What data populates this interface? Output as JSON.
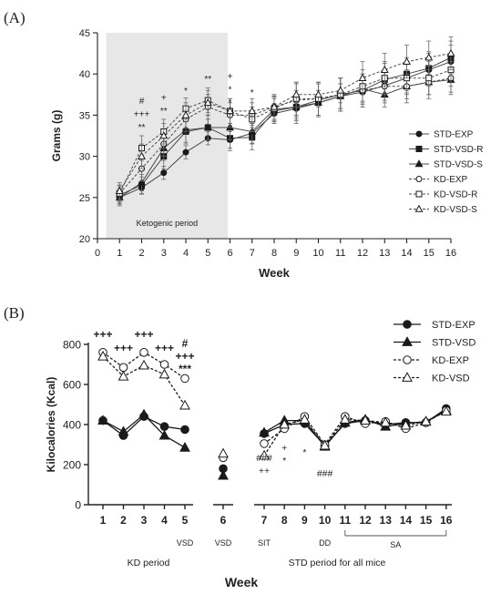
{
  "chart_data": [
    {
      "type": "line",
      "panel": "(A)",
      "xlabel": "Week",
      "ylabel": "Grams (g)",
      "xlim": [
        0,
        16
      ],
      "ylim": [
        20,
        45
      ],
      "x": [
        1,
        2,
        3,
        4,
        5,
        6,
        7,
        8,
        9,
        10,
        11,
        12,
        13,
        14,
        15,
        16
      ],
      "x_ticks": [
        0,
        1,
        2,
        3,
        4,
        5,
        6,
        7,
        8,
        9,
        10,
        11,
        12,
        13,
        14,
        15,
        16
      ],
      "y_ticks": [
        20,
        25,
        30,
        35,
        40,
        45
      ],
      "grid": false,
      "legend_position": "right",
      "shaded_region": {
        "label": "Ketogenic period",
        "x_range": [
          0.4,
          5.9
        ]
      },
      "series": [
        {
          "name": "STD-EXP",
          "marker": "filled-circle",
          "line": "solid",
          "values": [
            25.0,
            26.2,
            28.0,
            30.5,
            32.2,
            32.0,
            32.8,
            35.2,
            35.8,
            36.5,
            37.3,
            37.8,
            38.6,
            39.5,
            40.5,
            41.5
          ],
          "error": [
            0.8,
            0.8,
            0.8,
            0.8,
            0.8,
            1.0,
            1.2,
            1.2,
            1.5,
            1.5,
            1.5,
            1.5,
            1.8,
            1.8,
            2.0,
            2.0
          ]
        },
        {
          "name": "STD-VSD-R",
          "marker": "filled-square",
          "line": "solid",
          "values": [
            25.3,
            26.5,
            30.0,
            33.0,
            33.5,
            32.2,
            32.3,
            35.5,
            36.0,
            36.8,
            37.5,
            38.0,
            39.3,
            40.0,
            40.7,
            42.0
          ],
          "error": [
            1.0,
            1.0,
            1.5,
            1.5,
            1.5,
            1.5,
            1.5,
            1.5,
            2.0,
            2.0,
            2.0,
            2.0,
            2.0,
            2.0,
            2.0,
            2.0
          ]
        },
        {
          "name": "STD-VSD-S",
          "marker": "filled-triangle",
          "line": "solid",
          "values": [
            25.0,
            26.8,
            31.0,
            33.2,
            33.5,
            33.5,
            33.0,
            35.7,
            36.0,
            36.5,
            37.3,
            38.2,
            37.5,
            38.5,
            39.0,
            39.3
          ],
          "error": [
            1.0,
            1.0,
            1.5,
            1.5,
            1.5,
            1.5,
            1.5,
            1.5,
            1.5,
            1.5,
            1.5,
            1.5,
            1.5,
            1.5,
            1.5,
            1.5
          ]
        },
        {
          "name": "KD-EXP",
          "marker": "open-circle",
          "line": "dashed",
          "values": [
            25.5,
            28.5,
            31.5,
            34.5,
            36.0,
            35.0,
            35.0,
            36.0,
            36.8,
            37.0,
            37.5,
            38.0,
            38.5,
            38.5,
            39.0,
            39.5
          ],
          "error": [
            1.0,
            1.5,
            1.5,
            1.5,
            1.5,
            1.5,
            1.5,
            1.5,
            2.0,
            2.0,
            2.0,
            2.0,
            2.0,
            2.0,
            2.0,
            2.0
          ]
        },
        {
          "name": "KD-VSD-R",
          "marker": "open-square",
          "line": "dashed",
          "values": [
            25.5,
            31.0,
            33.0,
            35.8,
            36.8,
            35.5,
            34.5,
            35.8,
            37.0,
            37.0,
            37.5,
            38.5,
            39.5,
            39.5,
            39.5,
            40.5
          ],
          "error": [
            1.0,
            1.5,
            1.5,
            1.3,
            1.5,
            1.5,
            1.5,
            1.5,
            2.0,
            2.0,
            2.0,
            2.0,
            2.0,
            2.0,
            2.0,
            2.0
          ]
        },
        {
          "name": "KD-VSD-S",
          "marker": "open-triangle",
          "line": "dashed",
          "values": [
            25.8,
            30.0,
            32.5,
            35.0,
            36.5,
            35.5,
            35.5,
            36.0,
            37.5,
            37.5,
            38.0,
            39.5,
            40.5,
            41.5,
            42.0,
            42.5
          ],
          "error": [
            1.0,
            1.5,
            1.5,
            1.5,
            1.5,
            1.5,
            1.5,
            1.5,
            1.5,
            1.5,
            1.5,
            2.0,
            2.0,
            2.0,
            2.0,
            2.0
          ]
        }
      ],
      "annotations": [
        {
          "x": 2,
          "labels": [
            "#",
            "+++",
            "**"
          ]
        },
        {
          "x": 3,
          "labels": [
            "+",
            "**"
          ]
        },
        {
          "x": 4,
          "labels": [
            "*"
          ]
        },
        {
          "x": 5,
          "labels": [
            "**"
          ]
        },
        {
          "x": 6,
          "labels": [
            "+",
            "*",
            "*"
          ]
        },
        {
          "x": 7,
          "labels": [
            "*"
          ]
        }
      ]
    },
    {
      "type": "line",
      "panel": "(B)",
      "xlabel": "Week",
      "ylabel": "Kilocalories (Kcal)",
      "ylim": [
        0,
        800
      ],
      "x": [
        1,
        2,
        3,
        4,
        5,
        6,
        7,
        8,
        9,
        10,
        11,
        12,
        13,
        14,
        15,
        16
      ],
      "x_ticks": [
        1,
        2,
        3,
        4,
        5,
        6,
        7,
        8,
        9,
        10,
        11,
        12,
        13,
        14,
        15,
        16
      ],
      "y_ticks": [
        0,
        200,
        400,
        600,
        800
      ],
      "grid": false,
      "legend_position": "top-right",
      "connected_ranges": [
        [
          1,
          5
        ],
        [
          7,
          16
        ]
      ],
      "series": [
        {
          "name": "STD-EXP",
          "marker": "filled-circle",
          "line": "solid",
          "values": [
            420,
            345,
            440,
            390,
            375,
            180,
            355,
            400,
            405,
            295,
            405,
            420,
            400,
            410,
            410,
            480
          ]
        },
        {
          "name": "STD-VSD",
          "marker": "filled-triangle",
          "line": "solid",
          "values": [
            420,
            365,
            450,
            345,
            285,
            145,
            360,
            420,
            420,
            290,
            410,
            425,
            390,
            405,
            415,
            470
          ]
        },
        {
          "name": "KD-EXP",
          "marker": "open-circle",
          "line": "dashed",
          "values": [
            760,
            685,
            760,
            700,
            630,
            235,
            305,
            380,
            440,
            300,
            440,
            405,
            415,
            380,
            410,
            470
          ]
        },
        {
          "name": "KD-VSD",
          "marker": "open-triangle",
          "line": "dashed",
          "values": [
            740,
            640,
            695,
            650,
            495,
            255,
            245,
            400,
            425,
            295,
            425,
            420,
            410,
            395,
            415,
            465
          ]
        }
      ],
      "annotations": [
        {
          "x": 1,
          "labels": [
            "+++"
          ]
        },
        {
          "x": 2,
          "labels": [
            "+++"
          ]
        },
        {
          "x": 3,
          "labels": [
            "+++"
          ]
        },
        {
          "x": 4,
          "labels": [
            "+++"
          ]
        },
        {
          "x": 5,
          "labels": [
            "#",
            "+++",
            "***"
          ]
        },
        {
          "x": 7,
          "labels": [
            "###",
            "++"
          ]
        },
        {
          "x": 8,
          "labels": [
            "+",
            "*"
          ]
        },
        {
          "x": 9,
          "labels": [
            "*"
          ]
        },
        {
          "x": 10,
          "labels": [
            "###"
          ]
        }
      ],
      "phase_labels": [
        {
          "x": 5,
          "text": "VSD"
        },
        {
          "x": 6,
          "text": "VSD"
        },
        {
          "x": 7,
          "text": "SIT"
        },
        {
          "x": 10,
          "text": "DD"
        },
        {
          "x_range": [
            11,
            16
          ],
          "text": "SA"
        }
      ],
      "period_labels": [
        {
          "text": "KD period"
        },
        {
          "text": "STD period for all mice"
        }
      ]
    }
  ]
}
